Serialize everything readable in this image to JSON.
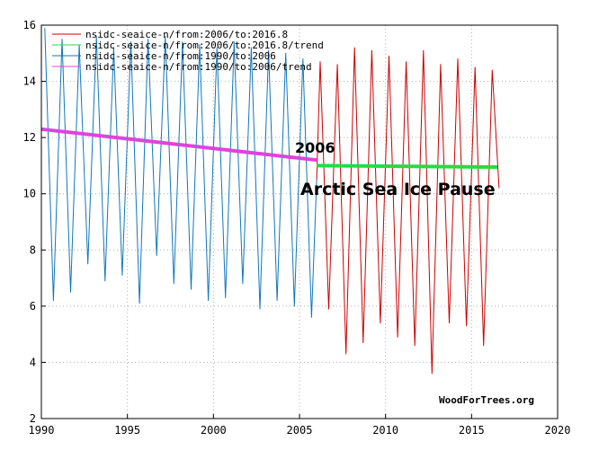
{
  "chart_data": {
    "type": "line",
    "title": "",
    "xlabel": "",
    "ylabel": "",
    "xlim": [
      1990,
      2020
    ],
    "ylim": [
      2,
      16
    ],
    "x_ticks": [
      "1990",
      "1995",
      "2000",
      "2005",
      "2010",
      "2015",
      "2020"
    ],
    "y_ticks": [
      "2",
      "4",
      "6",
      "8",
      "10",
      "12",
      "14",
      "16"
    ],
    "grid": "dashed-gray",
    "legend_position": "top-left",
    "colors": {
      "2006_2016": "#cc0000",
      "2006_2016_trend": "#22dd44",
      "1990_2006": "#1177bb",
      "1990_2006_trend": "#dd44dd"
    },
    "legend": [
      "nsidc-seaice-n/from:2006/to:2016.8",
      "nsidc-seaice-n/from:2006/to:2016.8/trend",
      "nsidc-seaice-n/from:1990/to:2006",
      "nsidc-seaice-n/from:1990/to:2006/trend"
    ],
    "series": [
      {
        "key": "1990_2006",
        "x": [
          1990.2,
          1990.7,
          1991.2,
          1991.7,
          1992.2,
          1992.7,
          1993.2,
          1993.7,
          1994.2,
          1994.7,
          1995.2,
          1995.7,
          1996.2,
          1996.7,
          1997.2,
          1997.7,
          1998.2,
          1998.7,
          1999.2,
          1999.7,
          2000.2,
          2000.7,
          2001.2,
          2001.7,
          2002.2,
          2002.7,
          2003.2,
          2003.7,
          2004.2,
          2004.7,
          2005.2,
          2005.7,
          2006.0
        ],
        "y": [
          15.9,
          6.2,
          15.5,
          6.5,
          15.3,
          7.5,
          15.6,
          6.9,
          15.2,
          7.1,
          15.4,
          6.1,
          15.5,
          7.8,
          15.6,
          6.8,
          15.4,
          6.6,
          15.3,
          6.2,
          15.2,
          6.3,
          15.4,
          6.8,
          15.2,
          5.9,
          15.1,
          6.2,
          15.0,
          6.0,
          14.8,
          5.6,
          10.5
        ]
      },
      {
        "key": "2006_2016",
        "x": [
          2006.0,
          2006.2,
          2006.7,
          2007.2,
          2007.7,
          2008.2,
          2008.7,
          2009.2,
          2009.7,
          2010.2,
          2010.7,
          2011.2,
          2011.7,
          2012.2,
          2012.7,
          2013.2,
          2013.7,
          2014.2,
          2014.7,
          2015.2,
          2015.7,
          2016.2,
          2016.6
        ],
        "y": [
          10.5,
          14.7,
          5.9,
          14.6,
          4.3,
          15.2,
          4.7,
          15.1,
          5.4,
          14.9,
          4.9,
          14.7,
          4.6,
          15.1,
          3.6,
          14.6,
          5.4,
          14.8,
          5.3,
          14.5,
          4.6,
          14.4,
          10.2
        ]
      },
      {
        "key": "1990_2006_trend",
        "x": [
          1990.0,
          2006.0
        ],
        "y": [
          12.3,
          11.2
        ]
      },
      {
        "key": "2006_2016_trend",
        "x": [
          2006.0,
          2016.5
        ],
        "y": [
          11.0,
          10.95
        ]
      }
    ],
    "annotations": {
      "year": "2006",
      "title": "Arctic Sea Ice Pause",
      "credit": "WoodForTrees.org"
    }
  }
}
